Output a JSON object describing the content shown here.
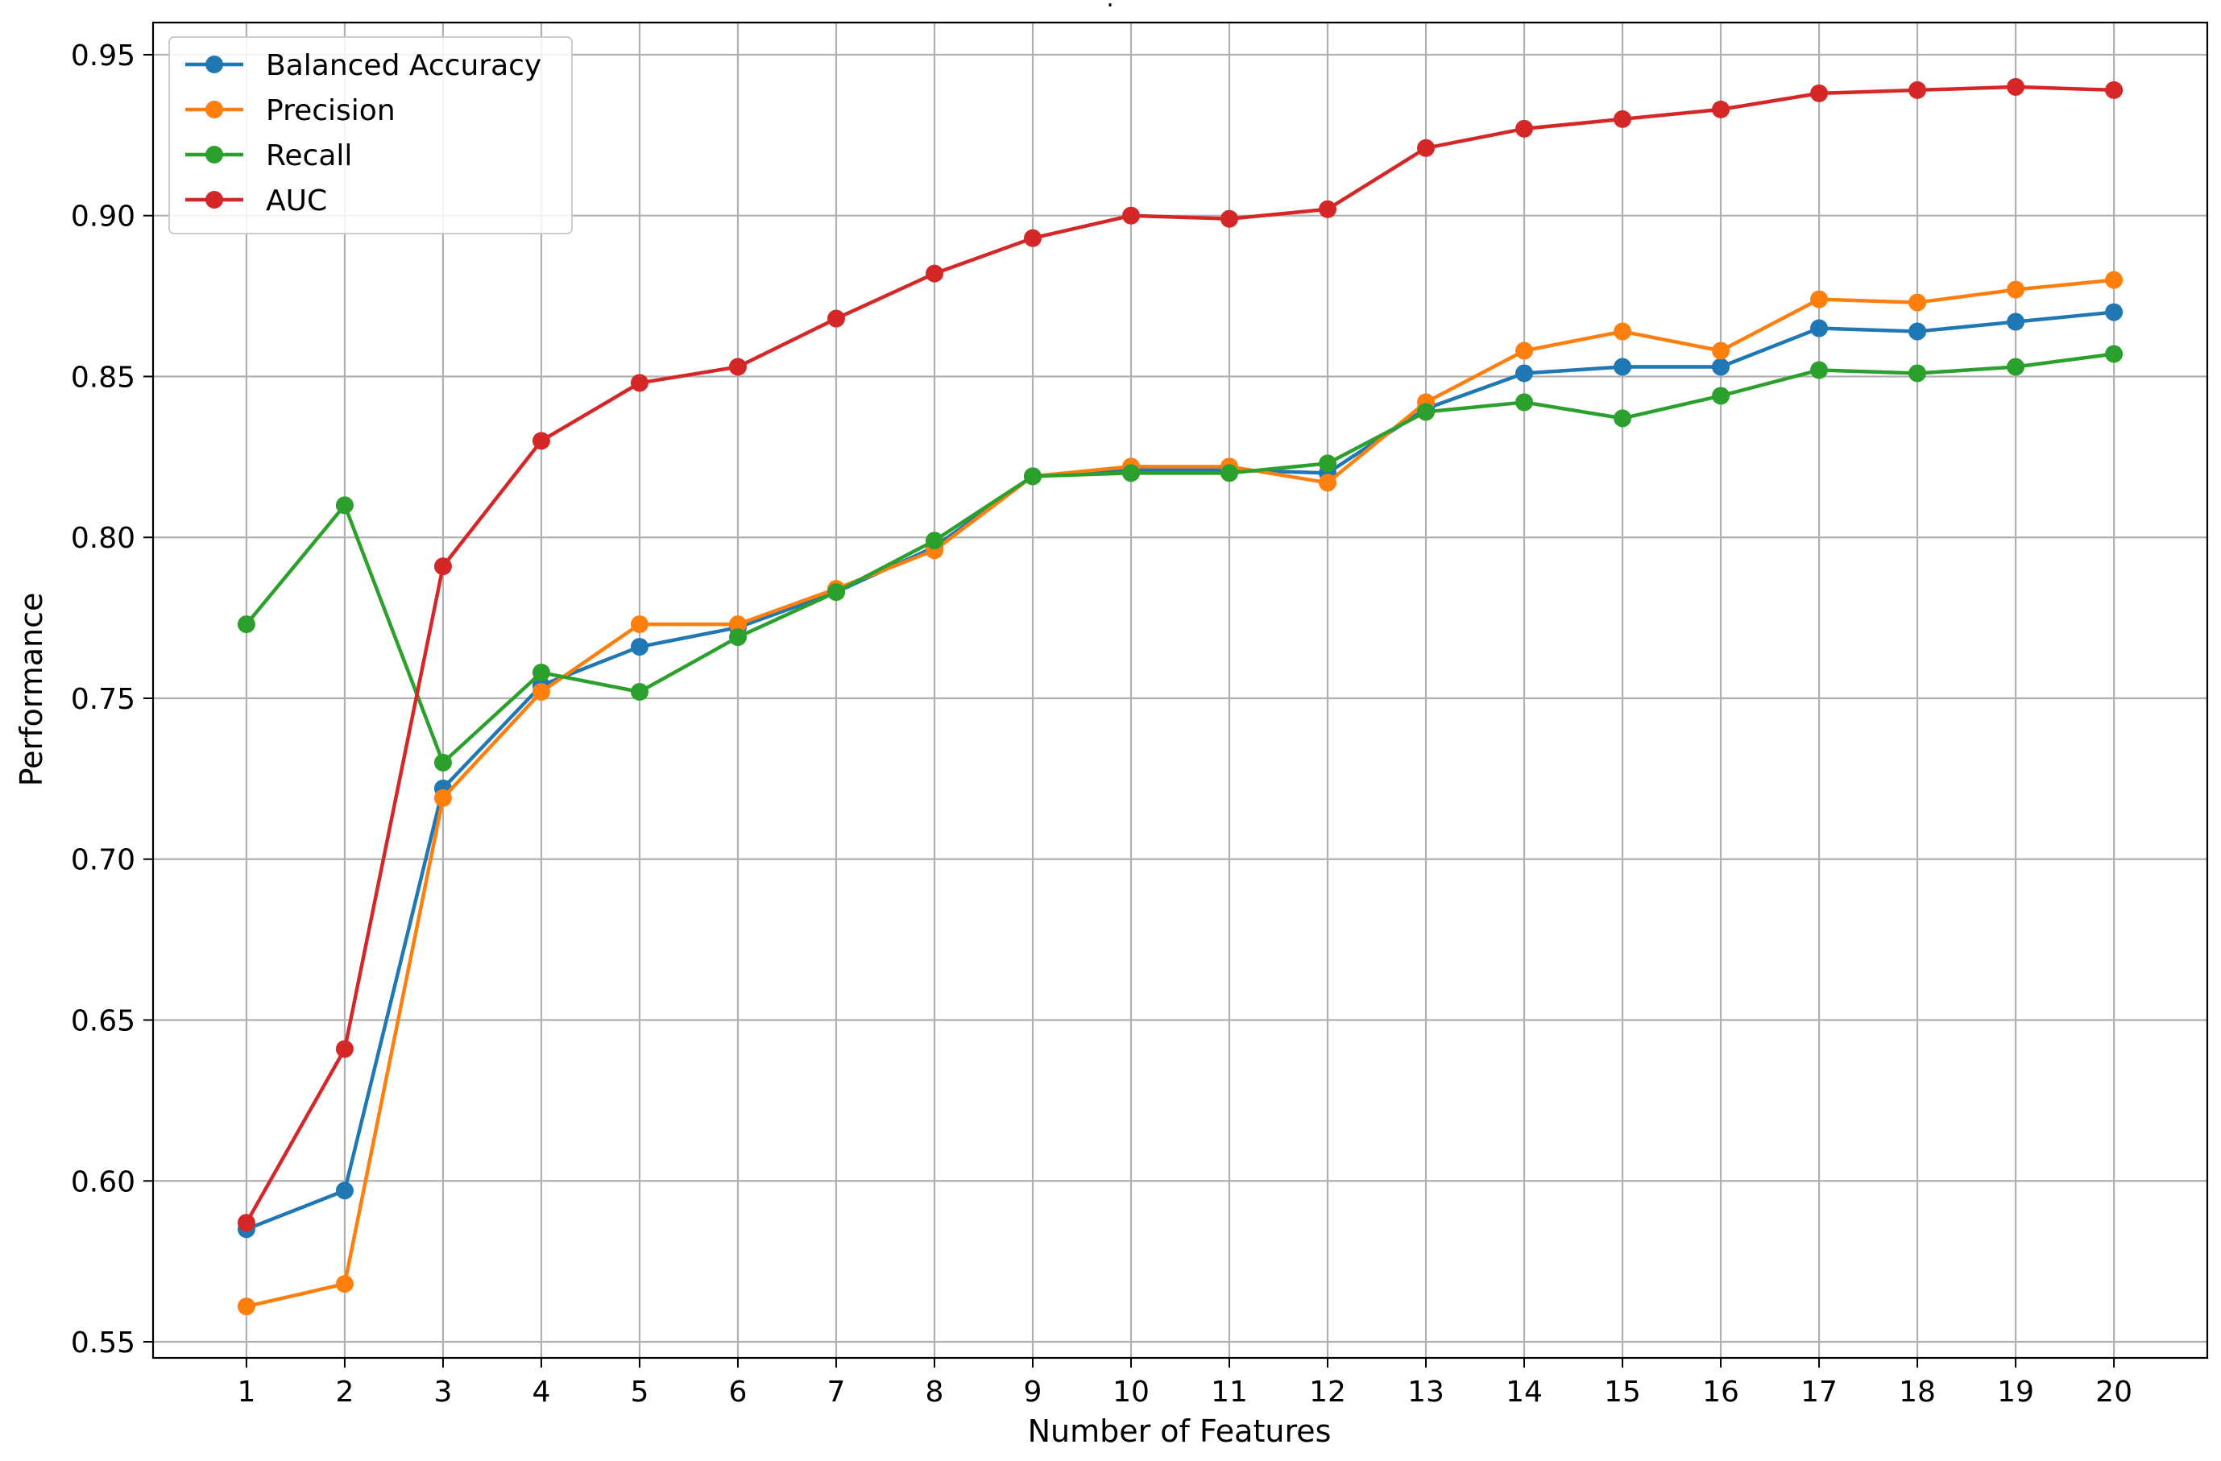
{
  "chart_data": {
    "type": "line",
    "title": ".",
    "xlabel": "Number of Features",
    "ylabel": "Performance",
    "x": [
      1,
      2,
      3,
      4,
      5,
      6,
      7,
      8,
      9,
      10,
      11,
      12,
      13,
      14,
      15,
      16,
      17,
      18,
      19,
      20
    ],
    "x_ticks": [
      "1",
      "2",
      "3",
      "4",
      "5",
      "6",
      "7",
      "8",
      "9",
      "10",
      "11",
      "12",
      "13",
      "14",
      "15",
      "16",
      "17",
      "18",
      "19",
      "20"
    ],
    "y_ticks": [
      "0.55",
      "0.60",
      "0.65",
      "0.70",
      "0.75",
      "0.80",
      "0.85",
      "0.90",
      "0.95"
    ],
    "xlim": [
      0.05,
      20.95
    ],
    "ylim": [
      0.545,
      0.96
    ],
    "grid": true,
    "legend_position": "upper-left",
    "series": [
      {
        "name": "Balanced Accuracy",
        "color": "#1f77b4",
        "values": [
          0.585,
          0.597,
          0.722,
          0.754,
          0.766,
          0.772,
          0.783,
          0.797,
          0.819,
          0.821,
          0.821,
          0.82,
          0.84,
          0.851,
          0.853,
          0.853,
          0.865,
          0.864,
          0.867,
          0.87
        ]
      },
      {
        "name": "Precision",
        "color": "#ff7f0e",
        "values": [
          0.561,
          0.568,
          0.719,
          0.752,
          0.773,
          0.773,
          0.784,
          0.796,
          0.819,
          0.822,
          0.822,
          0.817,
          0.842,
          0.858,
          0.864,
          0.858,
          0.874,
          0.873,
          0.877,
          0.88
        ]
      },
      {
        "name": "Recall",
        "color": "#2ca02c",
        "values": [
          0.773,
          0.81,
          0.73,
          0.758,
          0.752,
          0.769,
          0.783,
          0.799,
          0.819,
          0.82,
          0.82,
          0.823,
          0.839,
          0.842,
          0.837,
          0.844,
          0.852,
          0.851,
          0.853,
          0.857
        ]
      },
      {
        "name": "AUC",
        "color": "#d62728",
        "values": [
          0.587,
          0.641,
          0.791,
          0.83,
          0.848,
          0.853,
          0.868,
          0.882,
          0.893,
          0.9,
          0.899,
          0.902,
          0.921,
          0.927,
          0.93,
          0.933,
          0.938,
          0.939,
          0.94,
          0.939
        ]
      }
    ]
  }
}
